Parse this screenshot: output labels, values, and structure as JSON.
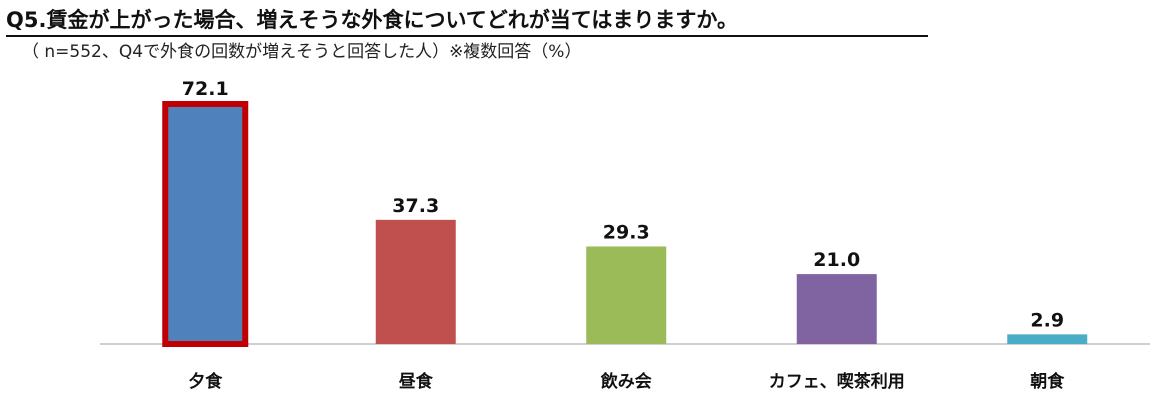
{
  "chart_data": {
    "type": "bar",
    "title": "Q5.賃金が上がった場合、増えそうな外食についてどれが当てはまりますか。",
    "subtitle": "（ n=552、Q4で外食の回数が増えそうと回答した人）※複数回答（%）",
    "categories": [
      "夕食",
      "昼食",
      "飲み会",
      "カフェ、喫茶利用",
      "朝食"
    ],
    "values": [
      72.1,
      37.3,
      29.3,
      21.0,
      2.9
    ],
    "value_labels": [
      "72.1",
      "37.3",
      "29.3",
      "21.0",
      "2.9"
    ],
    "colors": [
      "#4f81bd",
      "#c0504d",
      "#9bbb59",
      "#8064a2",
      "#4bacc6"
    ],
    "highlight": {
      "index": 0,
      "border_color": "#c00000"
    },
    "ylim": [
      0,
      72.1
    ],
    "xlabel": "",
    "ylabel": "",
    "grid": false,
    "legend": "none"
  }
}
